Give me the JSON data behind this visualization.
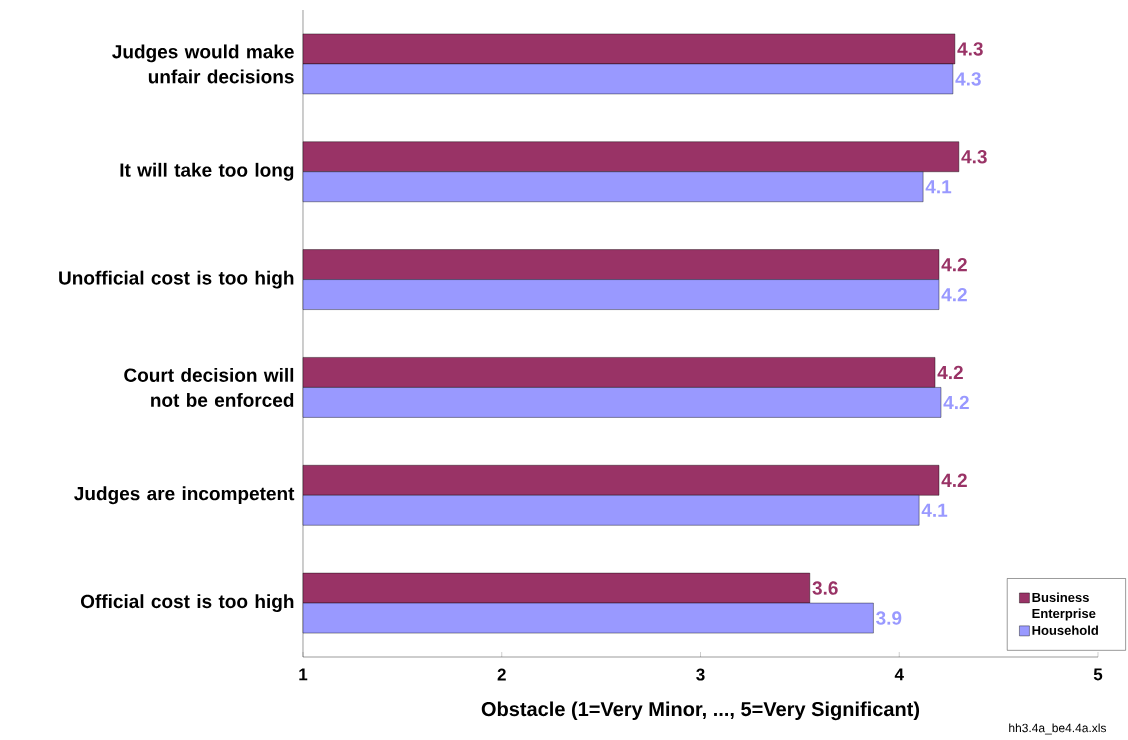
{
  "chart_data": {
    "type": "bar",
    "orientation": "horizontal",
    "xlabel": "Obstacle (1=Very Minor, ..., 5=Very Significant)",
    "categories": [
      "Judges would make unfair decisions",
      "It will take too long",
      "Unofficial cost is too high",
      "Court decision will not be enforced",
      "Judges are incompetent",
      "Official cost is too high"
    ],
    "series": [
      {
        "name": "Business Enterprise",
        "color": "#993366",
        "values": [
          4.28,
          4.3,
          4.2,
          4.18,
          4.2,
          3.55
        ],
        "value_labels": [
          "4.3",
          "4.3",
          "4.2",
          "4.2",
          "4.2",
          "3.6"
        ]
      },
      {
        "name": "Household",
        "color": "#9999ff",
        "values": [
          4.27,
          4.12,
          4.2,
          4.21,
          4.1,
          3.87
        ],
        "value_labels": [
          "4.3",
          "4.1",
          "4.2",
          "4.2",
          "4.1",
          "3.9"
        ]
      }
    ],
    "xlim": [
      1,
      5
    ],
    "xticks": [
      1,
      2,
      3,
      4,
      5
    ],
    "legend": "bottom right",
    "annotations": [
      "hh3.4a_be4.4a.xls"
    ]
  }
}
